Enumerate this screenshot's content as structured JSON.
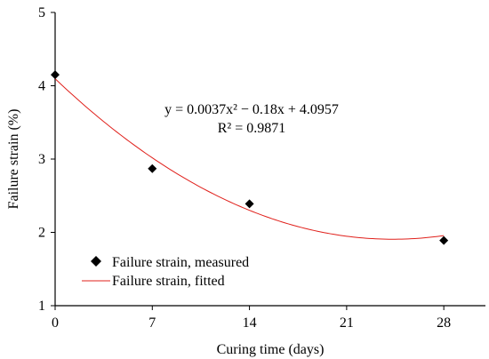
{
  "chart_data": {
    "type": "scatter",
    "xlabel": "Curing time (days)",
    "ylabel": "Failure strain (%)",
    "xlim": [
      0,
      31
    ],
    "ylim": [
      1,
      5
    ],
    "x_ticks": [
      0,
      7,
      14,
      21,
      28
    ],
    "y_ticks": [
      1,
      2,
      3,
      4,
      5
    ],
    "x_tick_labels": [
      "0",
      "7",
      "14",
      "21",
      "28"
    ],
    "y_tick_labels": [
      "1",
      "2",
      "3",
      "4",
      "5"
    ],
    "grid": false,
    "legend_position": "bottom-left",
    "series": [
      {
        "name": "Failure strain, measured",
        "kind": "scatter",
        "marker": "diamond",
        "color": "#000000",
        "x": [
          0,
          7,
          14,
          28
        ],
        "y": [
          4.15,
          2.87,
          2.39,
          1.89
        ]
      },
      {
        "name": "Failure strain, fitted",
        "kind": "line",
        "color": "#e0201b",
        "model": {
          "a": 0.0037,
          "b": -0.18,
          "c": 4.0957
        },
        "x_range": [
          0,
          28
        ]
      }
    ],
    "annotations": {
      "equation": "y = 0.0037x² − 0.18x + 4.0957",
      "r_squared": "R² = 0.9871"
    }
  }
}
